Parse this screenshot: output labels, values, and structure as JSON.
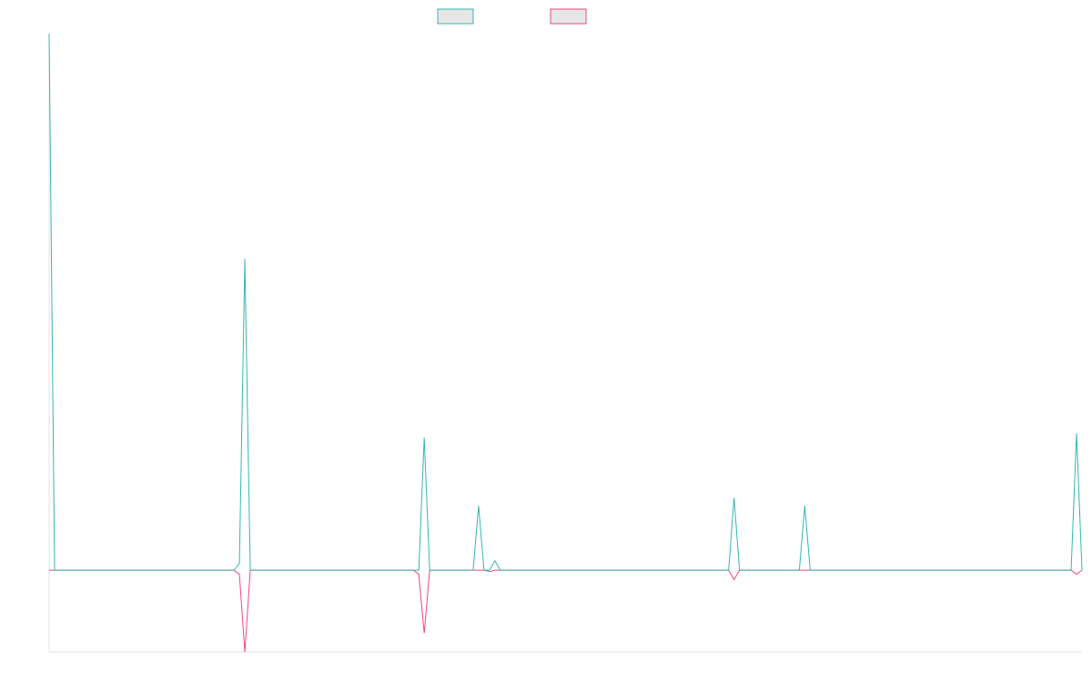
{
  "colors": {
    "series_a": "#36b5b3",
    "series_b": "#f0497a",
    "legend_fill": "#e6e6e6",
    "axis": "#e3e3e3"
  },
  "chart_data": {
    "type": "line",
    "title": "",
    "xlabel": "",
    "ylabel": "",
    "legend": "top-center",
    "grid": false,
    "ylim": [
      -61,
      400
    ],
    "x": [
      0,
      1,
      2,
      3,
      4,
      5,
      6,
      7,
      8,
      9,
      10,
      11,
      12,
      13,
      14,
      15,
      16,
      17,
      18,
      19,
      20,
      21,
      22,
      23,
      24,
      25,
      26,
      27,
      28,
      29,
      30,
      31,
      32,
      33,
      34,
      35,
      36,
      37,
      38,
      39,
      40,
      41,
      42,
      43,
      44,
      45,
      46,
      47,
      48,
      49,
      50,
      51,
      52,
      53,
      54,
      55,
      56,
      57,
      58,
      59,
      60,
      61,
      62,
      63,
      64,
      65,
      66,
      67,
      68,
      69,
      70,
      71,
      72,
      73,
      74,
      75,
      76,
      77,
      78,
      79,
      80,
      81,
      82,
      83,
      84,
      85,
      86,
      87,
      88,
      89,
      90,
      91,
      92,
      93,
      94,
      95,
      96,
      97,
      98,
      99,
      100,
      101,
      102,
      103,
      104,
      105,
      106,
      107,
      108,
      109,
      110,
      111,
      112,
      113,
      114,
      115,
      116,
      117,
      118,
      119,
      120,
      121,
      122,
      123,
      124,
      125,
      126,
      127,
      128,
      129,
      130,
      131,
      132,
      133,
      134,
      135,
      136,
      137,
      138,
      139,
      140,
      141,
      142,
      143,
      144,
      145,
      146,
      147,
      148,
      149,
      150,
      151,
      152,
      153,
      154,
      155,
      156,
      157,
      158,
      159,
      160,
      161,
      162,
      163,
      164,
      165,
      166,
      167,
      168,
      169,
      170,
      171,
      172,
      173,
      174,
      175,
      176,
      177,
      178,
      179,
      180,
      181,
      182,
      183,
      184,
      185,
      186,
      187,
      188,
      189,
      190
    ],
    "series": [
      {
        "name": "",
        "color": "#36b5b3",
        "values": [
          400,
          0,
          0,
          0,
          0,
          0,
          0,
          0,
          0,
          0,
          0,
          0,
          0,
          0,
          0,
          0,
          0,
          0,
          0,
          0,
          0,
          0,
          0,
          0,
          0,
          0,
          0,
          0,
          0,
          0,
          0,
          0,
          0,
          0,
          0,
          5,
          232,
          0,
          0,
          0,
          0,
          0,
          0,
          0,
          0,
          0,
          0,
          0,
          0,
          0,
          0,
          0,
          0,
          0,
          0,
          0,
          0,
          0,
          0,
          0,
          0,
          0,
          0,
          0,
          0,
          0,
          0,
          0,
          0,
          99,
          0,
          0,
          0,
          0,
          0,
          0,
          0,
          0,
          0,
          48,
          0,
          0,
          7,
          0,
          0,
          0,
          0,
          0,
          0,
          0,
          0,
          0,
          0,
          0,
          0,
          0,
          0,
          0,
          0,
          0,
          0,
          0,
          0,
          0,
          0,
          0,
          0,
          0,
          0,
          0,
          0,
          0,
          0,
          0,
          0,
          0,
          0,
          0,
          0,
          0,
          0,
          0,
          0,
          0,
          0,
          0,
          54,
          0,
          0,
          0,
          0,
          0,
          0,
          0,
          0,
          0,
          0,
          0,
          0,
          48,
          0,
          0,
          0,
          0,
          0,
          0,
          0,
          0,
          0,
          0,
          0,
          0,
          0,
          0,
          0,
          0,
          0,
          0,
          0,
          0,
          0,
          0,
          0,
          0,
          0,
          0,
          0,
          0,
          0,
          0,
          0,
          0,
          0,
          0,
          0,
          0,
          0,
          0,
          0,
          0,
          0,
          0,
          0,
          0,
          0,
          0,
          0,
          0,
          0,
          102,
          0
        ]
      },
      {
        "name": "",
        "color": "#f0497a",
        "values": [
          0,
          0,
          0,
          0,
          0,
          0,
          0,
          0,
          0,
          0,
          0,
          0,
          0,
          0,
          0,
          0,
          0,
          0,
          0,
          0,
          0,
          0,
          0,
          0,
          0,
          0,
          0,
          0,
          0,
          0,
          0,
          0,
          0,
          0,
          0,
          -3,
          -61,
          0,
          0,
          0,
          0,
          0,
          0,
          0,
          0,
          0,
          0,
          0,
          0,
          0,
          0,
          0,
          0,
          0,
          0,
          0,
          0,
          0,
          0,
          0,
          0,
          0,
          0,
          0,
          0,
          0,
          0,
          0,
          -3,
          -47,
          0,
          0,
          0,
          0,
          0,
          0,
          0,
          0,
          0,
          0,
          0,
          -1,
          0,
          0,
          0,
          0,
          0,
          0,
          0,
          0,
          0,
          0,
          0,
          0,
          0,
          0,
          0,
          0,
          0,
          0,
          0,
          0,
          0,
          0,
          0,
          0,
          0,
          0,
          0,
          0,
          0,
          0,
          0,
          0,
          0,
          0,
          0,
          0,
          0,
          0,
          0,
          0,
          0,
          0,
          0,
          0,
          -7,
          0,
          0,
          0,
          0,
          0,
          0,
          0,
          0,
          0,
          0,
          0,
          0,
          0,
          0,
          0,
          0,
          0,
          0,
          0,
          0,
          0,
          0,
          0,
          0,
          0,
          0,
          0,
          0,
          0,
          0,
          0,
          0,
          0,
          0,
          0,
          0,
          0,
          0,
          0,
          0,
          0,
          0,
          0,
          0,
          0,
          0,
          0,
          0,
          0,
          0,
          0,
          0,
          0,
          0,
          0,
          0,
          0,
          0,
          0,
          0,
          0,
          0,
          -3,
          0
        ]
      }
    ]
  }
}
